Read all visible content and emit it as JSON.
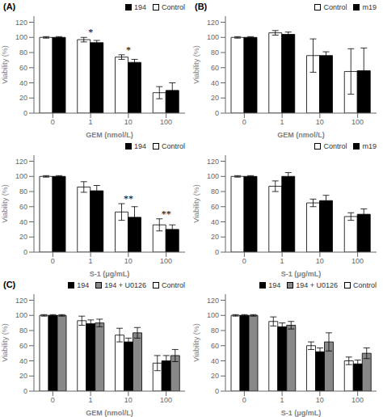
{
  "chart_data": [
    {
      "type": "bar",
      "title": "(A)",
      "xlabel": "GEM (nmol/L)",
      "ylabel": "Viability (%)",
      "categories": [
        "0",
        "1",
        "10",
        "100"
      ],
      "series": [
        {
          "name": "Control",
          "color": "white",
          "values": [
            100,
            97,
            74,
            27
          ],
          "errors": [
            1,
            3,
            3,
            8
          ]
        },
        {
          "name": "194",
          "color": "black",
          "values": [
            100,
            93,
            67,
            30
          ],
          "errors": [
            1,
            3,
            4,
            10
          ]
        }
      ],
      "annotations": [
        {
          "x": "1",
          "y": 102,
          "text": "*"
        },
        {
          "x": "10",
          "y": 79,
          "text": "*"
        }
      ],
      "ylim": [
        0,
        128
      ],
      "yticks": [
        0,
        20,
        40,
        60,
        80,
        100,
        120
      ]
    },
    {
      "type": "bar",
      "title": "(B)",
      "xlabel": "GEM (nmol/L)",
      "ylabel": "Viability (%)",
      "categories": [
        "0",
        "1",
        "10",
        "100"
      ],
      "series": [
        {
          "name": "Control",
          "color": "white",
          "values": [
            100,
            106,
            76,
            55
          ],
          "errors": [
            1,
            3,
            22,
            30
          ]
        },
        {
          "name": "m19",
          "color": "black",
          "values": [
            100,
            104,
            76,
            56
          ],
          "errors": [
            1,
            3,
            5,
            30
          ]
        }
      ],
      "annotations": [],
      "ylim": [
        0,
        128
      ],
      "yticks": [
        0,
        20,
        40,
        60,
        80,
        100,
        120
      ]
    },
    {
      "type": "bar",
      "xlabel": "S-1 (μg/mL)",
      "ylabel": "Viability (%)",
      "categories": [
        "0",
        "1",
        "10",
        "100"
      ],
      "series": [
        {
          "name": "Control",
          "color": "white",
          "values": [
            100,
            86,
            53,
            36
          ],
          "errors": [
            1,
            7,
            11,
            8
          ]
        },
        {
          "name": "194",
          "color": "black",
          "values": [
            100,
            81,
            46,
            30
          ],
          "errors": [
            1,
            7,
            14,
            6
          ]
        }
      ],
      "annotations": [
        {
          "x": "10",
          "y": 66,
          "text": "**"
        },
        {
          "x": "100",
          "y": 46,
          "text": "**"
        }
      ],
      "ylim": [
        0,
        128
      ],
      "yticks": [
        0,
        20,
        40,
        60,
        80,
        100,
        120
      ]
    },
    {
      "type": "bar",
      "xlabel": "S-1 (μg/mL)",
      "ylabel": "Viability (%)",
      "categories": [
        "0",
        "1",
        "10",
        "100"
      ],
      "series": [
        {
          "name": "Control",
          "color": "white",
          "values": [
            100,
            87,
            65,
            47
          ],
          "errors": [
            1,
            7,
            5,
            5
          ]
        },
        {
          "name": "m19",
          "color": "black",
          "values": [
            100,
            100,
            68,
            50
          ],
          "errors": [
            1,
            5,
            7,
            7
          ]
        }
      ],
      "annotations": [],
      "ylim": [
        0,
        128
      ],
      "yticks": [
        0,
        20,
        40,
        60,
        80,
        100,
        120
      ]
    },
    {
      "type": "bar",
      "title": "(C)",
      "xlabel": "GEM (nmol/L)",
      "ylabel": "Viability (%)",
      "categories": [
        "0",
        "1",
        "10",
        "100"
      ],
      "series": [
        {
          "name": "Control",
          "color": "white",
          "values": [
            100,
            93,
            74,
            37
          ],
          "errors": [
            1,
            6,
            9,
            10
          ]
        },
        {
          "name": "194",
          "color": "black",
          "values": [
            100,
            89,
            65,
            40
          ],
          "errors": [
            1,
            5,
            5,
            7
          ]
        },
        {
          "name": "194 + U0126",
          "color": "#888888",
          "values": [
            100,
            90,
            77,
            47
          ],
          "errors": [
            1,
            5,
            7,
            8
          ]
        }
      ],
      "annotations": [],
      "ylim": [
        0,
        128
      ],
      "yticks": [
        0,
        20,
        40,
        60,
        80,
        100,
        120
      ]
    },
    {
      "type": "bar",
      "xlabel": "S-1 (μg/mL)",
      "ylabel": "Viability (%)",
      "categories": [
        "0",
        "1",
        "10",
        "100"
      ],
      "series": [
        {
          "name": "Control",
          "color": "white",
          "values": [
            100,
            92,
            60,
            40
          ],
          "errors": [
            1,
            6,
            5,
            5
          ]
        },
        {
          "name": "194",
          "color": "black",
          "values": [
            100,
            85,
            52,
            36
          ],
          "errors": [
            1,
            5,
            5,
            5
          ]
        },
        {
          "name": "194 + U0126",
          "color": "#888888",
          "values": [
            100,
            87,
            65,
            50
          ],
          "errors": [
            1,
            5,
            12,
            7
          ]
        }
      ],
      "annotations": [],
      "ylim": [
        0,
        128
      ],
      "yticks": [
        0,
        20,
        40,
        60,
        80,
        100,
        120
      ]
    }
  ]
}
